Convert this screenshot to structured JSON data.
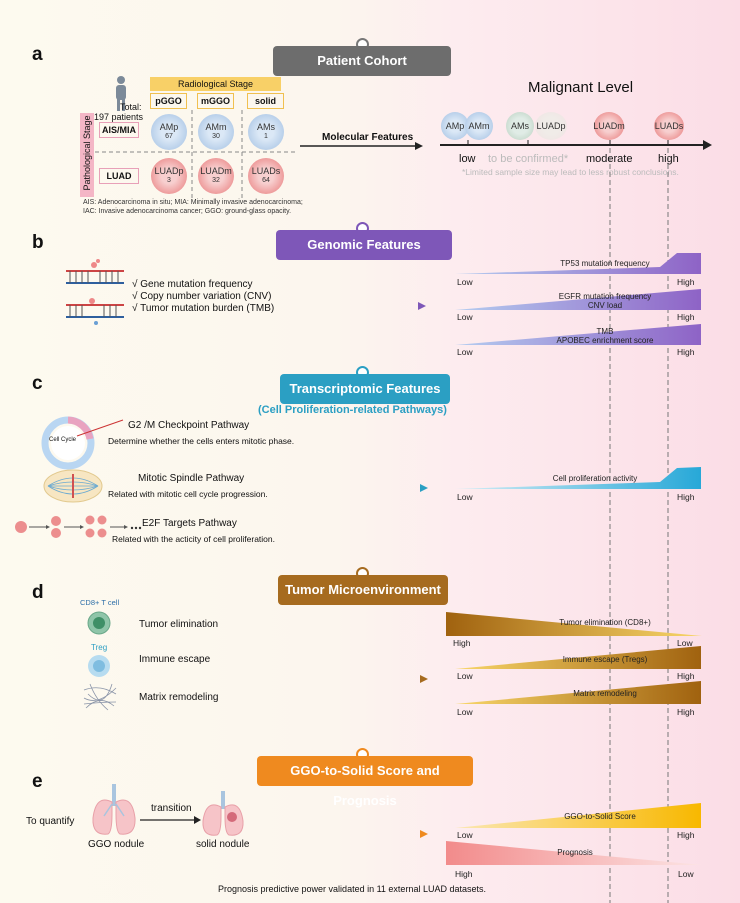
{
  "panels": {
    "a": "a",
    "b": "b",
    "c": "c",
    "d": "d",
    "e": "e"
  },
  "section_a": {
    "title": "Patient Cohort",
    "total_line1": "Total:",
    "total_line2": "197 patients",
    "radiological_stage": "Radiological Stage",
    "pathological_stage": "Pathological Stage",
    "columns": [
      "pGGO",
      "mGGO",
      "solid"
    ],
    "rows": [
      "AIS/MIA",
      "LUAD"
    ],
    "cells": [
      {
        "label": "AMp",
        "n": "67"
      },
      {
        "label": "AMm",
        "n": "30"
      },
      {
        "label": "AMs",
        "n": "1"
      },
      {
        "label": "LUADp",
        "n": "3"
      },
      {
        "label": "LUADm",
        "n": "32"
      },
      {
        "label": "LUADs",
        "n": "64"
      }
    ],
    "abbrev_line1": "AIS: Adenocarcinoma in situ; MIA: Minimally invasive adenocarcinoma;",
    "abbrev_line2": "IAC: Invasive adenocarcinoma cancer; GGO: ground-glass opacity.",
    "molecular_features": "Molecular Features",
    "malignant_level": "Malignant Level",
    "axis_items": [
      "AMp",
      "AMm",
      "AMs",
      "LUADp",
      "LUADm",
      "LUADs"
    ],
    "levels": {
      "low": "low",
      "confirm": "to be confirmed*",
      "moderate": "moderate",
      "high": "high"
    },
    "note": "*Limited sample size may lead to less robust conclusions."
  },
  "section_b": {
    "title": "Genomic Features",
    "bullets": [
      "√ Gene mutation frequency",
      "√ Copy number variation (CNV)",
      "√ Tumor mutation burden (TMB)"
    ],
    "wedges": [
      {
        "text1": "TP53 mutation frequency",
        "text2": "",
        "low": "Low",
        "high": "High"
      },
      {
        "text1": "EGFR mutation frequency",
        "text2": "CNV load",
        "low": "Low",
        "high": "High"
      },
      {
        "text1": "TMB",
        "text2": "APOBEC enrichment score",
        "low": "Low",
        "high": "High"
      }
    ]
  },
  "section_c": {
    "title": "Transcriptomic Features",
    "subtitle": "(Cell Proliferation-related  Pathways)",
    "cell_cycle": "Cell Cycle",
    "pathways": [
      {
        "name": "G2 /M Checkpoint Pathway",
        "desc": "Determine whether the cells enters mitotic phase."
      },
      {
        "name": "Mitotic Spindle Pathway",
        "desc": "Related with mitotic cell cycle progression."
      },
      {
        "name": "E2F Targets Pathway",
        "desc": "Related with the acticity of cell proliferation."
      }
    ],
    "wedge": {
      "text1": "Cell proliferation activity",
      "low": "Low",
      "high": "High"
    }
  },
  "section_d": {
    "title": "Tumor Microenvironment",
    "cd8_label": "CD8+ T cell",
    "treg_label": "Treg",
    "items": [
      "Tumor elimination",
      "Immune escape",
      "Matrix remodeling"
    ],
    "wedges": [
      {
        "text1": "Tumor elimination (CD8+)",
        "left": "High",
        "right": "Low"
      },
      {
        "text1": "Immune escape (Tregs)",
        "left": "Low",
        "right": "High"
      },
      {
        "text1": "Matrix remodeling",
        "left": "Low",
        "right": "High"
      }
    ]
  },
  "section_e": {
    "title": "GGO-to-Solid Score and Prognosis",
    "to_quantify": "To quantify",
    "transition": "transition",
    "ggo_nodule": "GGO nodule",
    "solid_nodule": "solid nodule",
    "wedges": [
      {
        "text1": "GGO-to-Solid Score",
        "left": "Low",
        "right": "High"
      },
      {
        "text1": "Prognosis",
        "left": "High",
        "right": "Low"
      }
    ],
    "footer": "Prognosis predictive power validated in 11 external LUAD datasets."
  },
  "colors": {
    "cohort": "#6d6d6d",
    "genomic": "#7e57b8",
    "transcriptomic": "#2b9fc3",
    "tme": "#a66b1f",
    "ggo": "#ef8a1f"
  }
}
